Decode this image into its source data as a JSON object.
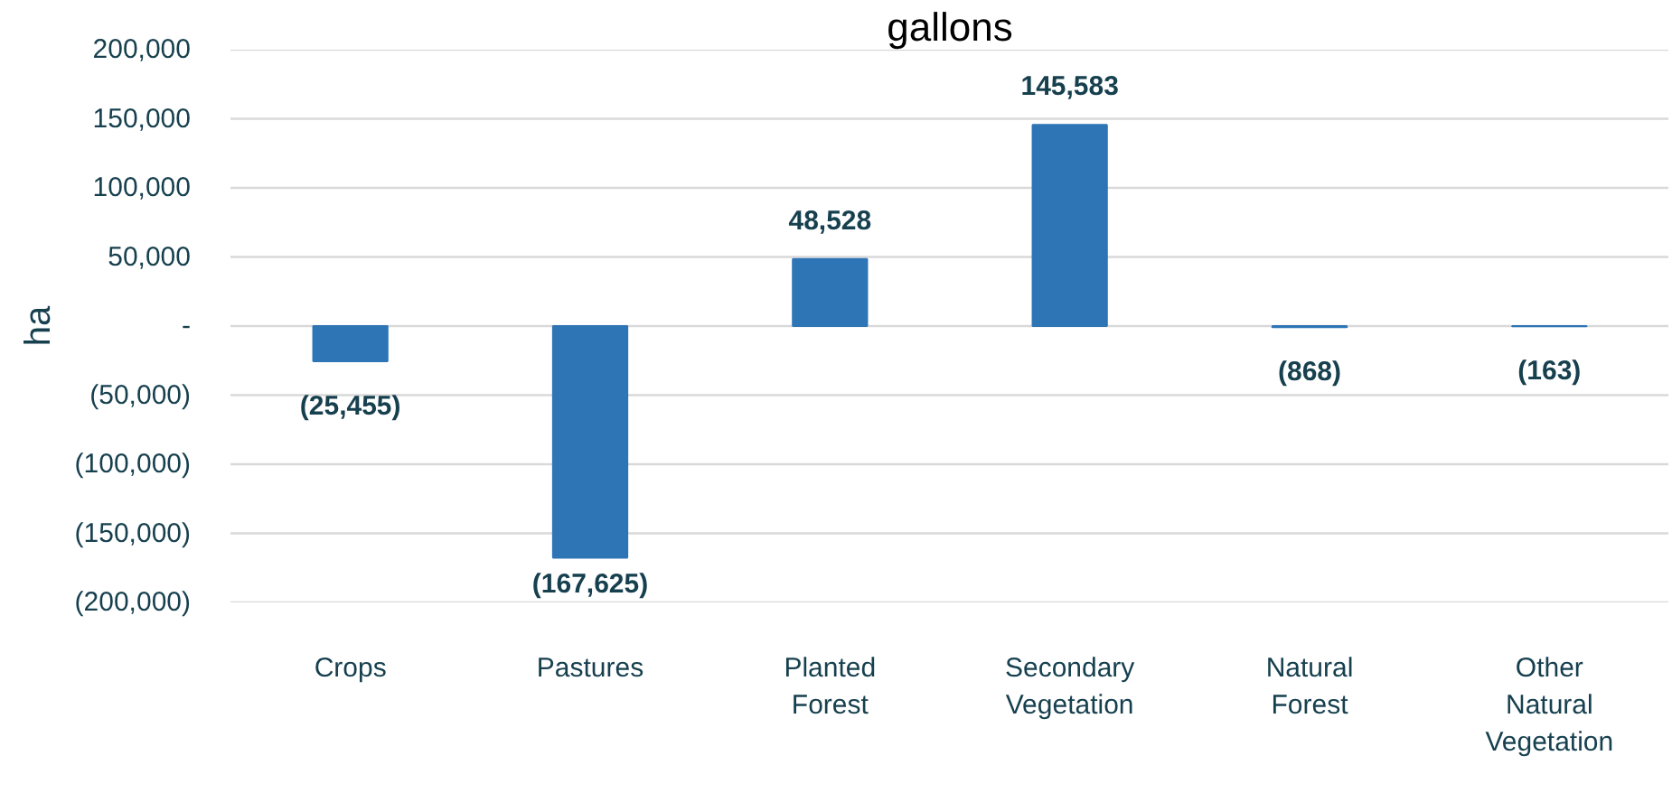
{
  "chart_data": {
    "type": "bar",
    "title": "gallons",
    "ylabel": "ha",
    "categories": [
      "Crops",
      "Pastures",
      "Planted Forest",
      "Secondary Vegetation",
      "Natural Forest",
      "Other Natural Vegetation"
    ],
    "values": [
      -25455,
      -167625,
      48528,
      145583,
      -868,
      -163
    ],
    "color": "#2e75b6",
    "value_labels": [
      "(25,455)",
      "(167,625)",
      "48,528",
      "145,583",
      "(868)",
      "(163)"
    ],
    "ylim": [
      -200000,
      200000
    ],
    "yticks": [
      {
        "value": 200000,
        "label": "200,000"
      },
      {
        "value": 150000,
        "label": "150,000"
      },
      {
        "value": 100000,
        "label": "100,000"
      },
      {
        "value": 50000,
        "label": "50,000"
      },
      {
        "value": 0,
        "label": "-"
      },
      {
        "value": -50000,
        "label": "(50,000)"
      },
      {
        "value": -100000,
        "label": "(100,000)"
      },
      {
        "value": -150000,
        "label": "(150,000)"
      },
      {
        "value": -200000,
        "label": "(200,000)"
      }
    ],
    "grid": "y"
  }
}
